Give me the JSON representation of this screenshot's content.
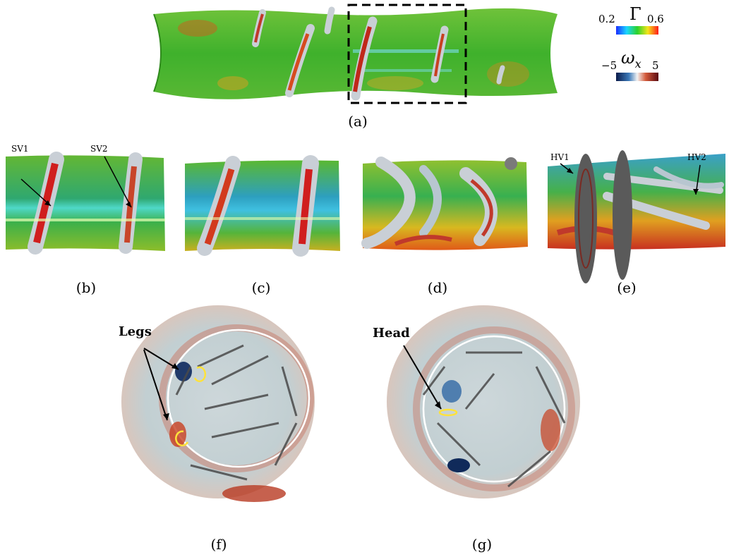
{
  "figure": {
    "panels": [
      {
        "id": "a",
        "caption": "(a)"
      },
      {
        "id": "b",
        "caption": "(b)",
        "labels": [
          "SV1",
          "SV2"
        ]
      },
      {
        "id": "c",
        "caption": "(c)"
      },
      {
        "id": "d",
        "caption": "(d)"
      },
      {
        "id": "e",
        "caption": "(e)",
        "labels": [
          "HV1",
          "HV2"
        ]
      },
      {
        "id": "f",
        "caption": "(f)",
        "labels": [
          "Legs"
        ]
      },
      {
        "id": "g",
        "caption": "(g)",
        "labels": [
          "Head"
        ]
      }
    ],
    "colorbars": {
      "gamma": {
        "symbol": "Γ",
        "min": "0.2",
        "max": "0.6"
      },
      "omega": {
        "symbol": "ω",
        "subscript": "x",
        "min": "−5",
        "max": "5"
      }
    },
    "colors": {
      "green": "#43b02a",
      "red": "#c8321e",
      "blue_ax": "#2a7fc8",
      "vortex_grey": "#c9cfd6",
      "slice_grey": "#5a5a5a",
      "arrow_grey": "#4a4a4a",
      "annotation_yellow": "#ffe23a"
    }
  }
}
